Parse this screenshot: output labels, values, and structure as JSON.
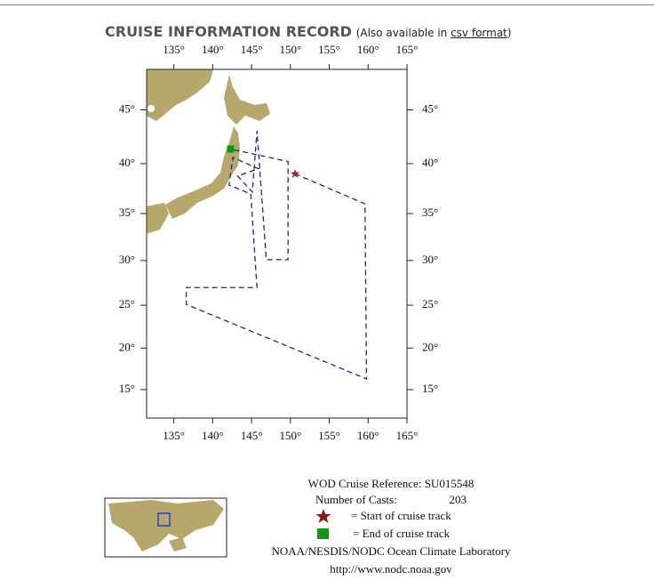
{
  "header": {
    "title": "CRUISE INFORMATION RECORD",
    "note_prefix": "(Also available in ",
    "link": "csv format",
    "note_suffix": ")"
  },
  "map": {
    "lonlim": [
      131.5,
      165
    ],
    "latlim": [
      11.5,
      48.5
    ],
    "lon_ticks": [
      {
        "value": 135,
        "label": "135°"
      },
      {
        "value": 140,
        "label": "140°"
      },
      {
        "value": 145,
        "label": "145°"
      },
      {
        "value": 150,
        "label": "150°"
      },
      {
        "value": 155,
        "label": "155°"
      },
      {
        "value": 160,
        "label": "160°"
      },
      {
        "value": 165,
        "label": "165°"
      }
    ],
    "lat_ticks": [
      {
        "value": 45,
        "label": "45°"
      },
      {
        "value": 40,
        "label": "40°"
      },
      {
        "value": 35,
        "label": "35°"
      },
      {
        "value": 30,
        "label": "30°"
      },
      {
        "value": 25,
        "label": "25°"
      },
      {
        "value": 20,
        "label": "20°"
      },
      {
        "value": 15,
        "label": "15°"
      }
    ],
    "track_color": "#1c2a78",
    "track": [
      [
        150.6,
        39.0
      ],
      [
        159.6,
        36.0
      ],
      [
        159.8,
        16.3
      ],
      [
        136.6,
        25.1
      ],
      [
        136.6,
        27.0
      ],
      [
        145.7,
        27.0
      ],
      [
        144.9,
        37.0
      ],
      [
        142.1,
        37.9
      ],
      [
        142.6,
        40.6
      ],
      [
        145.9,
        39.5
      ],
      [
        143.2,
        38.8
      ],
      [
        145.1,
        37.2
      ],
      [
        145.7,
        43.1
      ],
      [
        146.9,
        30.1
      ],
      [
        149.7,
        30.1
      ],
      [
        149.7,
        40.2
      ],
      [
        142.3,
        41.4
      ]
    ]
  },
  "legend": {
    "reference": "WOD Cruise Reference: SU015548",
    "casts_label": "Number of Casts:",
    "casts_value": "203",
    "start": "= Start of cruise track",
    "end": "= End of cruise track",
    "org": "NOAA/NESDIS/NODC Ocean Climate Laboratory",
    "url": "http://www.nodc.noaa.gov"
  }
}
